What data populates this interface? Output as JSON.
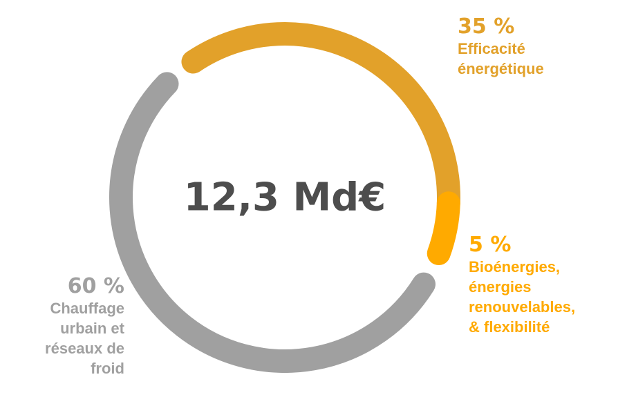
{
  "chart_data": {
    "type": "pie",
    "variant": "donut",
    "center_label": "12,3 Md€",
    "slices": [
      {
        "id": "eff",
        "percent": 35,
        "percent_label": "35 %",
        "label_lines": [
          "Efficacité",
          "énergétique"
        ],
        "color": "#E2A12A"
      },
      {
        "id": "bio",
        "percent": 5,
        "percent_label": "5 %",
        "label_lines": [
          "Bioénergies,",
          "énergies",
          "renouvelables,",
          "& flexibilité"
        ],
        "color": "#FFAA00"
      },
      {
        "id": "heat",
        "percent": 60,
        "percent_label": "60 %",
        "label_lines": [
          "Chauffage",
          "urbain et",
          "réseaux de",
          "froid"
        ],
        "color": "#A0A0A0"
      }
    ],
    "center_color": "#4D4D4D"
  }
}
